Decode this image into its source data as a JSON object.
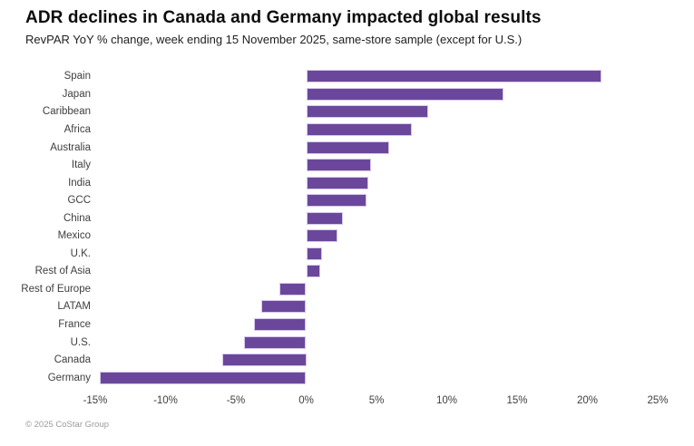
{
  "header": {
    "title": "ADR declines in Canada and Germany impacted global results",
    "subtitle": "RevPAR YoY % change, week ending 15 November 2025, same-store sample (except for U.S.)"
  },
  "footer": {
    "copyright": "© 2025 CoStar Group"
  },
  "colors": {
    "bar_fill": "#6b479c",
    "bar_border": "#d7c8ee",
    "label_text": "#3e3e3e",
    "footer_text": "#9b9b9b"
  },
  "chart_data": {
    "type": "bar",
    "orientation": "horizontal",
    "title": "ADR declines in Canada and Germany impacted global results",
    "subtitle": "RevPAR YoY % change, week ending 15 November 2025, same-store sample (except for U.S.)",
    "xlabel": "",
    "ylabel": "",
    "xlim": [
      -15,
      25
    ],
    "grid": false,
    "legend": false,
    "value_unit": "%",
    "categories": [
      "Spain",
      "Japan",
      "Caribbean",
      "Africa",
      "Australia",
      "Italy",
      "India",
      "GCC",
      "China",
      "Mexico",
      "U.K.",
      "Rest of Asia",
      "Rest of Europe",
      "LATAM",
      "France",
      "U.S.",
      "Canada",
      "Germany"
    ],
    "values": [
      21.0,
      14.0,
      8.7,
      7.5,
      5.9,
      4.6,
      4.4,
      4.3,
      2.6,
      2.2,
      1.1,
      1.0,
      -1.9,
      -3.2,
      -3.7,
      -4.4,
      -6.0,
      -14.7
    ],
    "ticks": [
      -15,
      -10,
      -5,
      0,
      5,
      10,
      15,
      20,
      25
    ],
    "tick_labels": [
      "-15%",
      "-10%",
      "-5%",
      "0%",
      "5%",
      "10%",
      "15%",
      "20%",
      "25%"
    ]
  }
}
